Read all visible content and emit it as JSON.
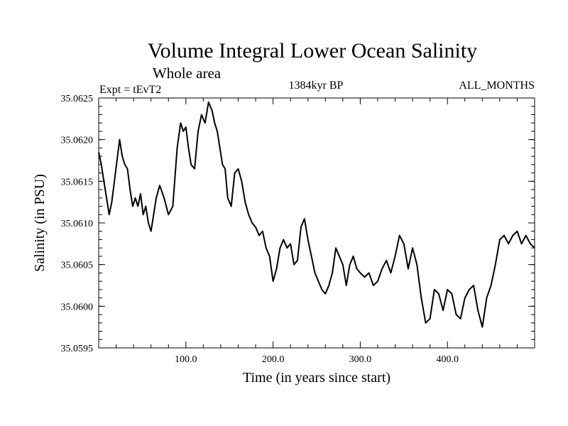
{
  "chart_data": {
    "type": "line",
    "title": "Volume Integral Lower Ocean Salinity",
    "subtitle": "Whole area",
    "experiment_label": "Expt = tEvT2",
    "period_label": "1384kyr BP",
    "months_label": "ALL_MONTHS",
    "xlabel": "Time (in years since start)",
    "ylabel": "Salinity (in PSU)",
    "xlim": [
      0,
      500
    ],
    "ylim": [
      35.0595,
      35.0625
    ],
    "xticks": [
      100,
      200,
      300,
      400
    ],
    "xtick_labels": [
      "100.0",
      "200.0",
      "300.0",
      "400.0"
    ],
    "yticks": [
      35.0595,
      35.06,
      35.0605,
      35.061,
      35.0615,
      35.062,
      35.0625
    ],
    "ytick_labels": [
      "35.0595",
      "35.0600",
      "35.0605",
      "35.0610",
      "35.0615",
      "35.0620",
      "35.0625"
    ],
    "grid": false,
    "series": [
      {
        "name": "Salinity",
        "color": "#000000",
        "x": [
          0,
          3,
          6,
          9,
          12,
          15,
          18,
          21,
          24,
          27,
          30,
          33,
          36,
          39,
          42,
          45,
          48,
          51,
          54,
          57,
          60,
          63,
          66,
          70,
          75,
          80,
          85,
          90,
          94,
          97,
          100,
          103,
          106,
          110,
          114,
          118,
          122,
          126,
          130,
          133,
          136,
          139,
          142,
          145,
          148,
          152,
          156,
          160,
          164,
          168,
          172,
          176,
          180,
          184,
          188,
          192,
          196,
          200,
          204,
          208,
          212,
          216,
          220,
          224,
          228,
          232,
          236,
          240,
          244,
          248,
          252,
          256,
          260,
          264,
          268,
          272,
          276,
          280,
          284,
          288,
          292,
          296,
          300,
          305,
          310,
          315,
          320,
          325,
          330,
          335,
          340,
          345,
          350,
          355,
          360,
          365,
          370,
          375,
          380,
          385,
          390,
          395,
          400,
          405,
          410,
          415,
          420,
          425,
          430,
          435,
          440,
          445,
          450,
          455,
          460,
          465,
          470,
          475,
          480,
          485,
          490,
          495,
          500
        ],
        "values": [
          35.06185,
          35.0617,
          35.0615,
          35.0613,
          35.0611,
          35.06125,
          35.0615,
          35.06175,
          35.062,
          35.0618,
          35.0617,
          35.06165,
          35.0614,
          35.0612,
          35.0613,
          35.0612,
          35.06135,
          35.0611,
          35.0612,
          35.061,
          35.0609,
          35.0611,
          35.0613,
          35.06145,
          35.0613,
          35.0611,
          35.0612,
          35.0619,
          35.0622,
          35.0621,
          35.06215,
          35.0619,
          35.0617,
          35.06165,
          35.0621,
          35.0623,
          35.0622,
          35.06245,
          35.06235,
          35.0622,
          35.0621,
          35.0619,
          35.0617,
          35.06165,
          35.0613,
          35.0612,
          35.0616,
          35.06165,
          35.0615,
          35.06125,
          35.0611,
          35.061,
          35.06095,
          35.06085,
          35.0609,
          35.0607,
          35.0606,
          35.0603,
          35.06045,
          35.0607,
          35.0608,
          35.0607,
          35.06075,
          35.0605,
          35.06055,
          35.06095,
          35.06105,
          35.0608,
          35.0606,
          35.0604,
          35.0603,
          35.0602,
          35.06015,
          35.06025,
          35.0604,
          35.0607,
          35.0606,
          35.0605,
          35.06025,
          35.0605,
          35.0606,
          35.06045,
          35.0604,
          35.06035,
          35.0604,
          35.06025,
          35.0603,
          35.06045,
          35.06055,
          35.0604,
          35.0606,
          35.06085,
          35.06075,
          35.06045,
          35.0607,
          35.0605,
          35.0601,
          35.0598,
          35.05985,
          35.0602,
          35.06015,
          35.05995,
          35.0602,
          35.06015,
          35.0599,
          35.05985,
          35.0601,
          35.0602,
          35.06025,
          35.05995,
          35.05975,
          35.0601,
          35.06025,
          35.0605,
          35.0608,
          35.06085,
          35.06075,
          35.06085,
          35.0609,
          35.06075,
          35.06085,
          35.06075,
          35.0607
        ]
      }
    ]
  }
}
